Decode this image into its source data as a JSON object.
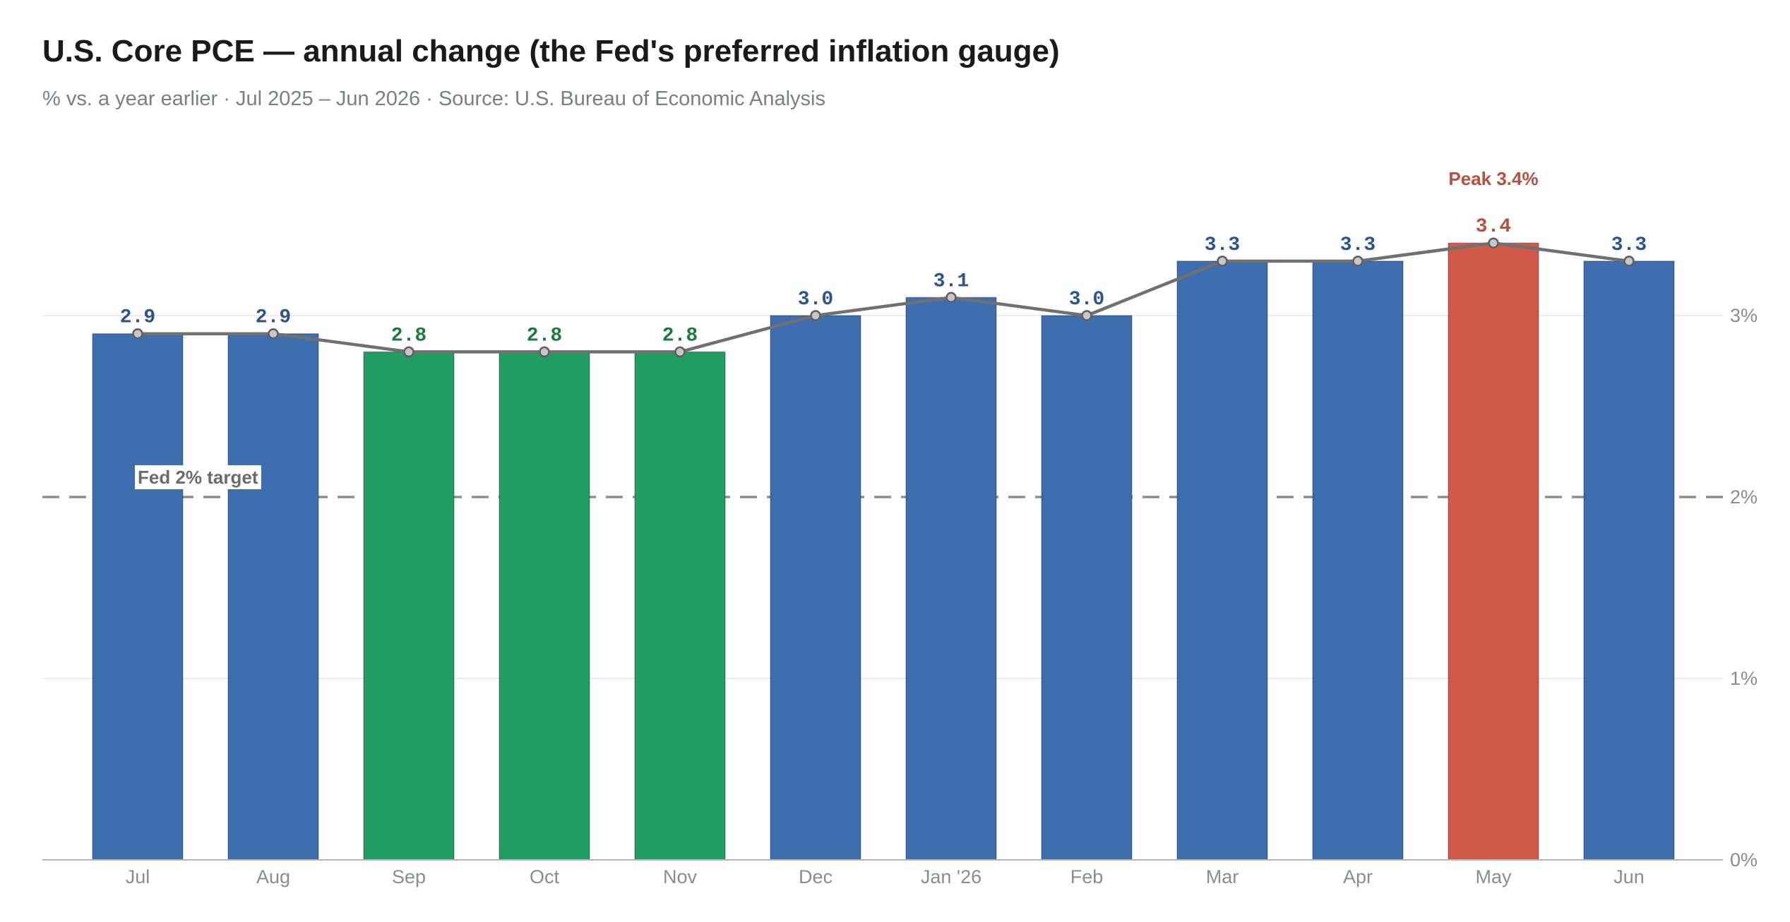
{
  "title": "U.S. Core PCE — annual change (the Fed's preferred inflation gauge)",
  "subtitle": "% vs. a year earlier · Jul 2025 – Jun 2026 · Source: U.S. Bureau of Economic Analysis",
  "chart_data": {
    "type": "bar",
    "title": "U.S. Core PCE — annual change (the Fed's preferred inflation gauge)",
    "subtitle": "% vs. a year earlier · Jul 2025 – Jun 2026 · Source: U.S. Bureau of Economic Analysis",
    "categories": [
      "Jul",
      "Aug",
      "Sep",
      "Oct",
      "Nov",
      "Dec",
      "Jan '26",
      "Feb",
      "Mar",
      "Apr",
      "May",
      "Jun"
    ],
    "values": [
      2.9,
      2.9,
      2.8,
      2.8,
      2.8,
      3.0,
      3.1,
      3.0,
      3.3,
      3.3,
      3.4,
      3.3
    ],
    "value_labels": [
      "2.9",
      "2.9",
      "2.8",
      "2.8",
      "2.8",
      "3.0",
      "3.1",
      "3.0",
      "3.3",
      "3.3",
      "3.4",
      "3.3"
    ],
    "bar_status": [
      "normal",
      "normal",
      "low",
      "low",
      "low",
      "normal",
      "normal",
      "normal",
      "normal",
      "normal",
      "peak",
      "normal"
    ],
    "overlay_line": true,
    "ylim": [
      0,
      3.75
    ],
    "yticks": [
      0,
      1,
      2,
      3
    ],
    "ytick_labels": [
      "0%",
      "1%",
      "2%",
      "3%"
    ],
    "y_axis_side": "right",
    "grid": true,
    "reference_line": {
      "value": 2,
      "label": "Fed 2% target",
      "style": "dashed"
    },
    "peak_annotation": {
      "category": "May",
      "label": "Peak 3.4%"
    },
    "colors": {
      "normal": "#3d6eb0",
      "normal_label": "#2b5591",
      "low": "#219c62",
      "low_label": "#1e7a3e",
      "peak": "#d25949",
      "peak_label": "#b8503e",
      "line": "#707070",
      "reference": "#8e8e8e"
    }
  }
}
